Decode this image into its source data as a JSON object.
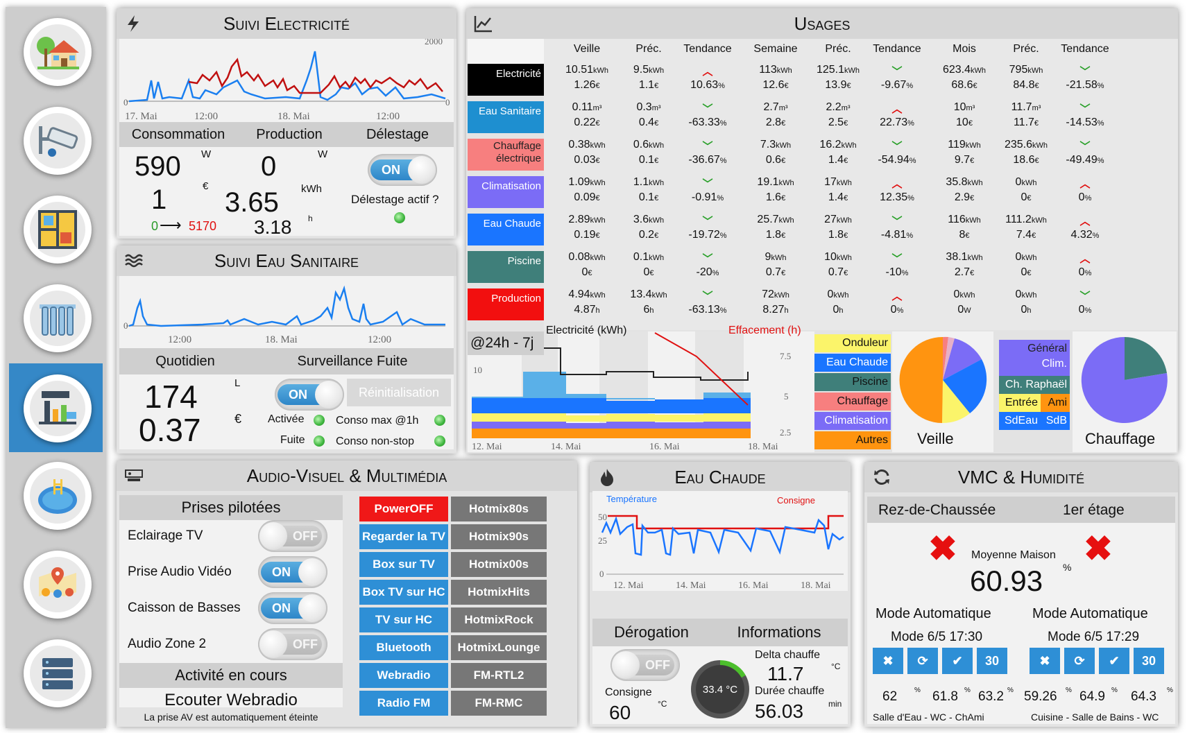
{
  "nav": {
    "items": [
      "maison",
      "camera",
      "plan",
      "chauffage",
      "suivi",
      "piscine",
      "localisation",
      "serveur"
    ]
  },
  "elec": {
    "title": "Suivi Electricité",
    "axis_top": "2000",
    "axis_left": "0",
    "axis_right": "0",
    "ticks": [
      "17. Mai",
      "12:00",
      "18. Mai",
      "12:00"
    ],
    "h_conso": "Consommation",
    "h_prod": "Production",
    "h_delest": "Délestage",
    "conso_w": "590",
    "unit_w": "W",
    "prod_w": "0",
    "unit_w2": "W",
    "conso_eur": "1",
    "unit_eur": "€",
    "prod_kwh": "3.65",
    "unit_kwh": "kWh",
    "range_from": "0",
    "range_arrow": "⟶",
    "range_to": "5170",
    "prod_h": "3.18",
    "unit_h": "h",
    "delest_toggle": "ON",
    "delest_q": "Délestage actif ?"
  },
  "eau": {
    "title": "Suivi Eau Sanitaire",
    "axis_left": "0",
    "ticks": [
      "12:00",
      "18. Mai",
      "12:00"
    ],
    "h_quot": "Quotidien",
    "h_fuite": "Surveillance Fuite",
    "litres": "174",
    "unit_l": "L",
    "euros": "0.37",
    "unit_eur": "€",
    "toggle": "ON",
    "reinit": "Réinitialisation",
    "activee": "Activée",
    "conso_max": "Conso max @1h",
    "fuite": "Fuite",
    "conso_nonstop": "Conso non-stop"
  },
  "usages": {
    "title": "Usages",
    "headers": [
      "Veille",
      "Préc.",
      "Tendance",
      "Semaine",
      "Préc.",
      "Tendance",
      "Mois",
      "Préc.",
      "Tendance"
    ],
    "rows": [
      {
        "label": "Electricité",
        "color": "#000000",
        "cells": [
          [
            "10.51",
            "kWh",
            "1.26",
            "€"
          ],
          [
            "9.5",
            "kWh",
            "1.1",
            "€"
          ],
          [
            "up",
            "10.63",
            "%"
          ],
          [
            "113",
            "kWh",
            "12.6",
            "€"
          ],
          [
            "125.1",
            "kWh",
            "13.9",
            "€"
          ],
          [
            "down",
            "-9.67",
            "%"
          ],
          [
            "623.4",
            "kWh",
            "68.6",
            "€"
          ],
          [
            "795",
            "kWh",
            "84.8",
            "€"
          ],
          [
            "down",
            "-21.58",
            "%"
          ]
        ]
      },
      {
        "label": "Eau Sanitaire",
        "color": "#1e8fd0",
        "cells": [
          [
            "0.11",
            "m³",
            "0.22",
            "€"
          ],
          [
            "0.3",
            "m³",
            "0.4",
            "€"
          ],
          [
            "down",
            "-63.33",
            "%"
          ],
          [
            "2.7",
            "m³",
            "2.8",
            "€"
          ],
          [
            "2.2",
            "m³",
            "2.5",
            "€"
          ],
          [
            "up",
            "22.73",
            "%"
          ],
          [
            "10",
            "m³",
            "10",
            "€"
          ],
          [
            "11.7",
            "m³",
            "11.7",
            "€"
          ],
          [
            "down",
            "-14.53",
            "%"
          ]
        ]
      },
      {
        "label": "Chauffage électrique",
        "color": "#f77f7f",
        "cells": [
          [
            "0.38",
            "kWh",
            "0.03",
            "€"
          ],
          [
            "0.6",
            "kWh",
            "0.1",
            "€"
          ],
          [
            "down",
            "-36.67",
            "%"
          ],
          [
            "7.3",
            "kWh",
            "0.6",
            "€"
          ],
          [
            "16.2",
            "kWh",
            "1.4",
            "€"
          ],
          [
            "down",
            "-54.94",
            "%"
          ],
          [
            "119",
            "kWh",
            "9.7",
            "€"
          ],
          [
            "235.6",
            "kWh",
            "18.6",
            "€"
          ],
          [
            "down",
            "-49.49",
            "%"
          ]
        ]
      },
      {
        "label": "Climatisation",
        "color": "#7b6cf6",
        "cells": [
          [
            "1.09",
            "kWh",
            "0.09",
            "€"
          ],
          [
            "1.1",
            "kWh",
            "0.1",
            "€"
          ],
          [
            "down",
            "-0.91",
            "%"
          ],
          [
            "19.1",
            "kWh",
            "1.6",
            "€"
          ],
          [
            "17",
            "kWh",
            "1.4",
            "€"
          ],
          [
            "up",
            "12.35",
            "%"
          ],
          [
            "35.8",
            "kWh",
            "2.9",
            "€"
          ],
          [
            "0",
            "kWh",
            "0",
            "€"
          ],
          [
            "up",
            "0",
            "%"
          ]
        ]
      },
      {
        "label": "Eau Chaude",
        "color": "#1a75ff",
        "cells": [
          [
            "2.89",
            "kWh",
            "0.19",
            "€"
          ],
          [
            "3.6",
            "kWh",
            "0.2",
            "€"
          ],
          [
            "down",
            "-19.72",
            "%"
          ],
          [
            "25.7",
            "kWh",
            "1.8",
            "€"
          ],
          [
            "27",
            "kWh",
            "1.8",
            "€"
          ],
          [
            "down",
            "-4.81",
            "%"
          ],
          [
            "116",
            "kWh",
            "8",
            "€"
          ],
          [
            "111.2",
            "kWh",
            "7.4",
            "€"
          ],
          [
            "up",
            "4.32",
            "%"
          ]
        ]
      },
      {
        "label": "Piscine",
        "color": "#3f7f7a",
        "cells": [
          [
            "0.08",
            "kWh",
            "0",
            "€"
          ],
          [
            "0.1",
            "kWh",
            "0",
            "€"
          ],
          [
            "down",
            "-20",
            "%"
          ],
          [
            "9",
            "kWh",
            "0.7",
            "€"
          ],
          [
            "10",
            "kWh",
            "0.7",
            "€"
          ],
          [
            "down",
            "-10",
            "%"
          ],
          [
            "38.1",
            "kWh",
            "2.7",
            "€"
          ],
          [
            "0",
            "kWh",
            "0",
            "€"
          ],
          [
            "up",
            "0",
            "%"
          ]
        ]
      },
      {
        "label": "Production",
        "color": "#f20f0f",
        "cells": [
          [
            "4.94",
            "kWh",
            "4.87",
            "h"
          ],
          [
            "13.4",
            "kWh",
            "6",
            "h"
          ],
          [
            "down",
            "-63.13",
            "%"
          ],
          [
            "72",
            "kWh",
            "8.27",
            "h"
          ],
          [
            "0",
            "kWh",
            "0",
            "h"
          ],
          [
            "up",
            "0",
            "%"
          ],
          [
            "0",
            "kWh",
            "0",
            "W"
          ],
          [
            "0",
            "kWh",
            "0",
            "h"
          ],
          [
            "down",
            "0",
            "%"
          ]
        ]
      }
    ],
    "period": "@24h - 7j",
    "chart_left_title": "Electricité (kWh)",
    "chart_right_title": "Effacement (h)",
    "y_right": [
      "7.5",
      "5",
      "2.5"
    ],
    "y_left": "10",
    "x_ticks": [
      "12. Mai",
      "14. Mai",
      "16. Mai",
      "18. Mai"
    ],
    "legend1": [
      {
        "label": "Onduleur",
        "color": "#fbf46a"
      },
      {
        "label": "Eau Chaude",
        "color": "#1a75ff"
      },
      {
        "label": "Piscine",
        "color": "#3f7f7a"
      },
      {
        "label": "Chauffage",
        "color": "#f77f7f"
      },
      {
        "label": "Climatisation",
        "color": "#7b6cf6"
      },
      {
        "label": "Autres",
        "color": "#ff9410"
      }
    ],
    "pie1_label": "Veille",
    "legend2": {
      "general": "Général",
      "clim": "Clim.",
      "raphael": "Ch. Raphaël",
      "entree": "Entrée",
      "ami": "Ami",
      "sdeau": "SdEau",
      "sdb": "SdB"
    },
    "pie2_label": "Chauffage"
  },
  "av": {
    "title": "Audio-Visuel & Multimédia",
    "prises_title": "Prises pilotées",
    "prises": [
      {
        "label": "Eclairage TV",
        "state": "OFF"
      },
      {
        "label": "Prise Audio Vidéo",
        "state": "ON"
      },
      {
        "label": "Caisson de Basses",
        "state": "ON"
      },
      {
        "label": "Audio Zone 2",
        "state": "OFF"
      }
    ],
    "activity_title": "Activité en cours",
    "activity": "Ecouter Webradio",
    "activity_note": "La prise AV est automatiquement éteinte",
    "scenes": [
      "PowerOFF",
      "Regarder la TV",
      "Box sur TV",
      "Box TV sur HC",
      "TV sur HC",
      "Bluetooth",
      "Webradio",
      "Radio FM"
    ],
    "radios": [
      "Hotmix80s",
      "Hotmix90s",
      "Hotmix00s",
      "HotmixHits",
      "HotmixRock",
      "HotmixLounge",
      "FM-RTL2",
      "FM-RMC"
    ]
  },
  "ec": {
    "title": "Eau Chaude",
    "leg_temp": "Température",
    "leg_cons": "Consigne",
    "y": [
      "50",
      "25",
      "0"
    ],
    "ticks": [
      "12. Mai",
      "14. Mai",
      "16. Mai",
      "18. Mai"
    ],
    "h_derog": "Dérogation",
    "h_info": "Informations",
    "toggle": "OFF",
    "consigne_label": "Consigne",
    "consigne": "60",
    "unit_c": "°C",
    "gauge": "33.4 °C",
    "delta_label": "Delta chauffe",
    "delta": "11.7",
    "unit_delta": "°C",
    "duree_label": "Durée chauffe",
    "duree": "56.03",
    "unit_min": "min"
  },
  "vmc": {
    "title": "VMC & Humidité",
    "rdc": "Rez-de-Chaussée",
    "etage": "1er étage",
    "moyenne_label": "Moyenne Maison",
    "moyenne": "60.93",
    "unit": "%",
    "mode1": "Mode Automatique",
    "mode1_time": "Mode 6/5 17:30",
    "mode2": "Mode Automatique",
    "mode2_time": "Mode 6/5 17:29",
    "btn30": "30",
    "hum1": [
      "62",
      "61.8",
      "63.2"
    ],
    "hum2": [
      "59.26",
      "64.9",
      "64.3"
    ],
    "pct": "%",
    "rooms1": "Salle d'Eau - WC - ChAmi",
    "rooms2": "Cuisine - Salle de Bains - WC"
  }
}
